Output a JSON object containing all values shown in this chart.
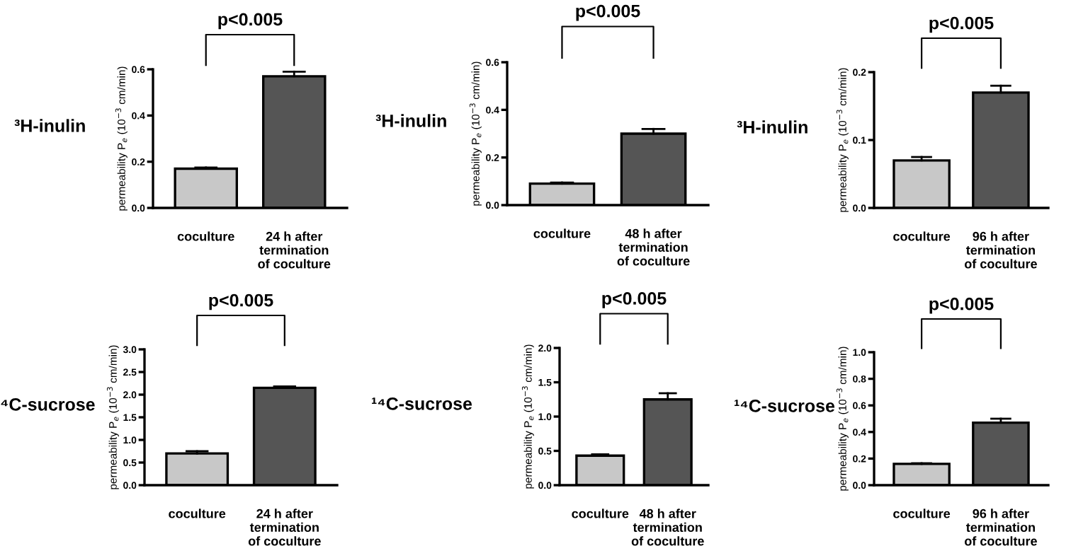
{
  "chart_data": [
    {
      "type": "bar",
      "ylabel": "permeability P$_{e}$ (10$^{−3}$ cm/min)",
      "annotations": [
        "³H-inulin",
        "p<0.005"
      ],
      "categories": [
        "coculture",
        "24 h after\ntermination\nof coculture"
      ],
      "values": [
        0.17,
        0.57
      ],
      "errors": [
        [
          0.17,
          0.175
        ],
        [
          0.57,
          0.59
        ]
      ],
      "colors": [
        "#c8c8c8",
        "#555555"
      ],
      "ylim": [
        0,
        0.6
      ],
      "yticks": [
        {
          "value": 0,
          "label": "0.0"
        },
        0.2,
        0.4,
        0.6
      ],
      "grid": false,
      "legend": false
    },
    {
      "type": "bar",
      "ylabel": "permeability P$_{e}$ (10$^{−3}$ cm/min)",
      "annotations": [
        "³H-inulin",
        "p<0.005"
      ],
      "categories": [
        "coculture",
        "48 h after\ntermination\nof coculture"
      ],
      "values": [
        0.09,
        0.3
      ],
      "errors": [
        [
          0.09,
          0.095
        ],
        [
          0.3,
          0.32
        ]
      ],
      "colors": [
        "#c8c8c8",
        "#555555"
      ],
      "ylim": [
        0,
        0.6
      ],
      "yticks": [
        {
          "value": 0,
          "label": "0.0"
        },
        0.2,
        0.4,
        0.6
      ],
      "grid": false,
      "legend": false
    },
    {
      "type": "bar",
      "ylabel": "permeability P$_{e}$ (10$^{−3}$ cm/min)",
      "annotations": [
        "³H-inulin",
        "p<0.005"
      ],
      "categories": [
        "coculture",
        "96 h after\ntermination\nof coculture"
      ],
      "values": [
        0.07,
        0.17
      ],
      "errors": [
        [
          0.07,
          0.075
        ],
        [
          0.17,
          0.18
        ]
      ],
      "colors": [
        "#c8c8c8",
        "#555555"
      ],
      "ylim": [
        0,
        0.2
      ],
      "yticks": [
        {
          "value": 0,
          "label": "0.0"
        },
        0.1,
        0.2
      ],
      "grid": false,
      "legend": false
    },
    {
      "type": "bar",
      "ylabel": "permeability P$_{e}$ (10$^{−3}$ cm/min)",
      "annotations": [
        "⁴C-sucrose",
        "p<0.005"
      ],
      "categories": [
        "coculture",
        "24 h after\ntermination\nof coculture"
      ],
      "values": [
        0.7,
        2.15
      ],
      "errors": [
        [
          0.7,
          0.75
        ],
        [
          2.15,
          2.18
        ]
      ],
      "colors": [
        "#c8c8c8",
        "#555555"
      ],
      "ylim": [
        0,
        3.0
      ],
      "yticks": [
        {
          "value": 0,
          "label": "0.0"
        },
        0.5,
        {
          "value": 1,
          "label": "1.0"
        },
        1.5,
        {
          "value": 2,
          "label": "2.0"
        },
        2.5,
        {
          "value": 3,
          "label": "3.0"
        }
      ],
      "grid": false,
      "legend": false
    },
    {
      "type": "bar",
      "ylabel": "permeability P$_{e}$ (10$^{−3}$ cm/min)",
      "annotations": [
        "¹⁴C-sucrose",
        "p<0.005"
      ],
      "categories": [
        "coculture",
        "48 h after\ntermination\nof coculture"
      ],
      "values": [
        0.43,
        1.25
      ],
      "errors": [
        [
          0.43,
          0.45
        ],
        [
          1.25,
          1.34
        ]
      ],
      "colors": [
        "#c8c8c8",
        "#555555"
      ],
      "ylim": [
        0,
        2.0
      ],
      "yticks": [
        {
          "value": 0,
          "label": "0.0"
        },
        0.5,
        {
          "value": 1,
          "label": "1.0"
        },
        1.5,
        {
          "value": 2,
          "label": "2.0"
        }
      ],
      "grid": false,
      "legend": false
    },
    {
      "type": "bar",
      "ylabel": "permeability P$_{e}$ (10$^{−3}$ cm/min)",
      "annotations": [
        "¹⁴C-sucrose",
        "p<0.005"
      ],
      "categories": [
        "coculture",
        "96 h after\ntermination\nof coculture"
      ],
      "values": [
        0.16,
        0.47
      ],
      "errors": [
        [
          0.16,
          0.165
        ],
        [
          0.47,
          0.5
        ]
      ],
      "colors": [
        "#c8c8c8",
        "#555555"
      ],
      "ylim": [
        0,
        1.0
      ],
      "yticks": [
        {
          "value": 0,
          "label": "0.0"
        },
        0.2,
        0.4,
        0.6,
        0.8,
        {
          "value": 1,
          "label": "1.0"
        }
      ],
      "grid": false,
      "legend": false
    }
  ]
}
